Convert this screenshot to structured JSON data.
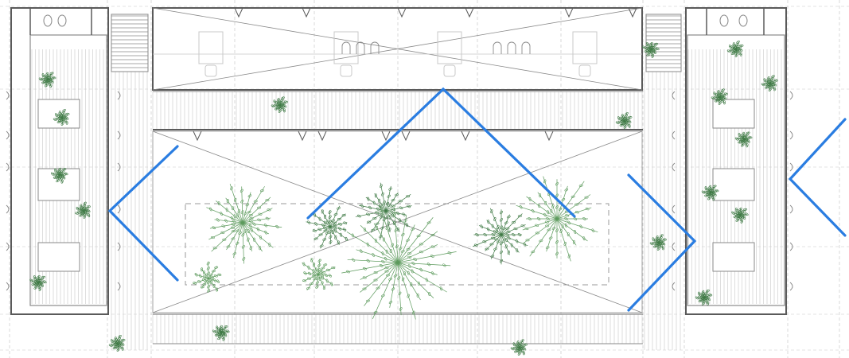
{
  "colors": {
    "background": "#ffffff",
    "line": "#8a8a8a",
    "light_line": "#c8c8c8",
    "dark_line": "#5a5a5a",
    "dash": "#9a9a9a",
    "plant": "#5c9a5c",
    "plant_dark": "#3f7a45",
    "chevron": "#2a7de1"
  },
  "elements": {
    "blocks": [
      "left-tower",
      "upper-room",
      "central-courtyard",
      "right-tower"
    ],
    "furniture": [
      "table",
      "chair",
      "bed",
      "toilet"
    ],
    "planting": [
      "courtyard-planting",
      "potted-plant"
    ],
    "overlay": [
      "left-chevron",
      "center-chevron",
      "right-chevron",
      "edge-chevron"
    ]
  }
}
